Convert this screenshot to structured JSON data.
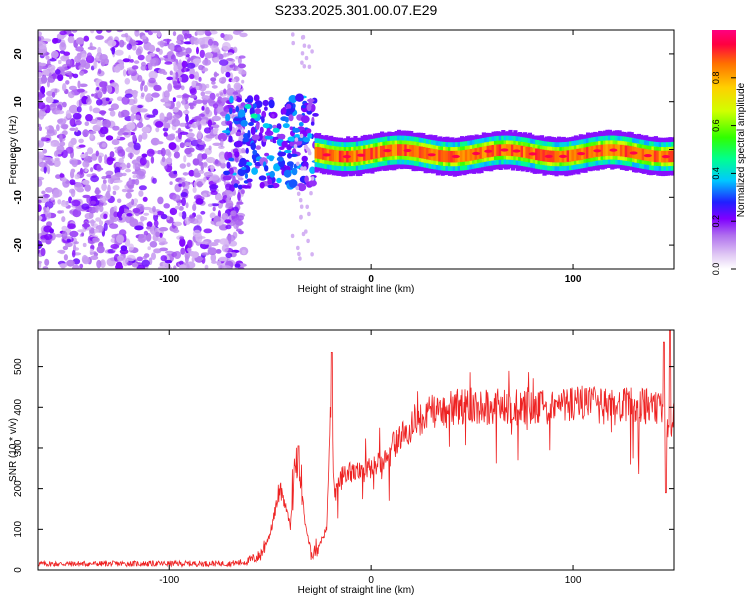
{
  "title": "S233.2025.301.00.07.E29",
  "chart_data": [
    {
      "type": "heatmap",
      "name": "spectrogram",
      "xlabel": "Height of straight line (km)",
      "ylabel": "Frequency (Hz)",
      "xlim": [
        -165,
        150
      ],
      "ylim": [
        -25,
        25
      ],
      "xticks": [
        -100,
        0,
        100
      ],
      "yticks": [
        -20,
        -10,
        0,
        10,
        20
      ],
      "description_regions": [
        {
          "x_range": [
            -165,
            -65
          ],
          "freq_range": [
            -25,
            25
          ],
          "amplitude": "low (0.05-0.2), scattered noise"
        },
        {
          "x_range": [
            -65,
            -28
          ],
          "freq_range": [
            -7,
            10
          ],
          "amplitude": "mixed 0.2-0.5"
        },
        {
          "x_range": [
            -28,
            150
          ],
          "freq_center": -0.5,
          "amplitude": "high 0.6-1.0 narrow band"
        }
      ],
      "colorbar": {
        "label": "Normalized spectral amplitude",
        "range": [
          0.0,
          1.0
        ],
        "ticks": [
          0.0,
          0.2,
          0.4,
          0.6,
          0.8
        ]
      }
    },
    {
      "type": "line",
      "name": "snr",
      "xlabel": "Height of straight line (km)",
      "ylabel": "SNR (10 * v/v)",
      "xlim": [
        -165,
        150
      ],
      "ylim": [
        0,
        590
      ],
      "xticks": [
        -100,
        0,
        100
      ],
      "yticks": [
        0,
        100,
        200,
        300,
        400,
        500
      ],
      "color": "#ee2222",
      "envelope_x": [
        -165,
        -70,
        -62,
        -55,
        -50,
        -45,
        -40,
        -38,
        -35,
        -33,
        -30,
        -26,
        -22,
        -20,
        -18,
        -15,
        -10,
        -5,
        0,
        5,
        10,
        15,
        20,
        25,
        30,
        40,
        50,
        60,
        70,
        80,
        90,
        100,
        110,
        120,
        130,
        140,
        145,
        148,
        150
      ],
      "envelope_y": [
        15,
        16,
        20,
        35,
        90,
        200,
        110,
        250,
        210,
        130,
        40,
        60,
        100,
        400,
        180,
        230,
        240,
        240,
        250,
        270,
        300,
        330,
        350,
        370,
        390,
        400,
        405,
        400,
        405,
        395,
        400,
        410,
        405,
        400,
        405,
        400,
        390,
        330,
        380
      ],
      "noise_amplitude": 45,
      "spikes": [
        {
          "x": -19.5,
          "y": 535
        },
        {
          "x": -36,
          "y": 305
        },
        {
          "x": 70,
          "y": 370
        },
        {
          "x": 145,
          "y": 560
        },
        {
          "x": 148,
          "y": 590
        },
        {
          "x": 146,
          "y": 190
        }
      ]
    }
  ]
}
